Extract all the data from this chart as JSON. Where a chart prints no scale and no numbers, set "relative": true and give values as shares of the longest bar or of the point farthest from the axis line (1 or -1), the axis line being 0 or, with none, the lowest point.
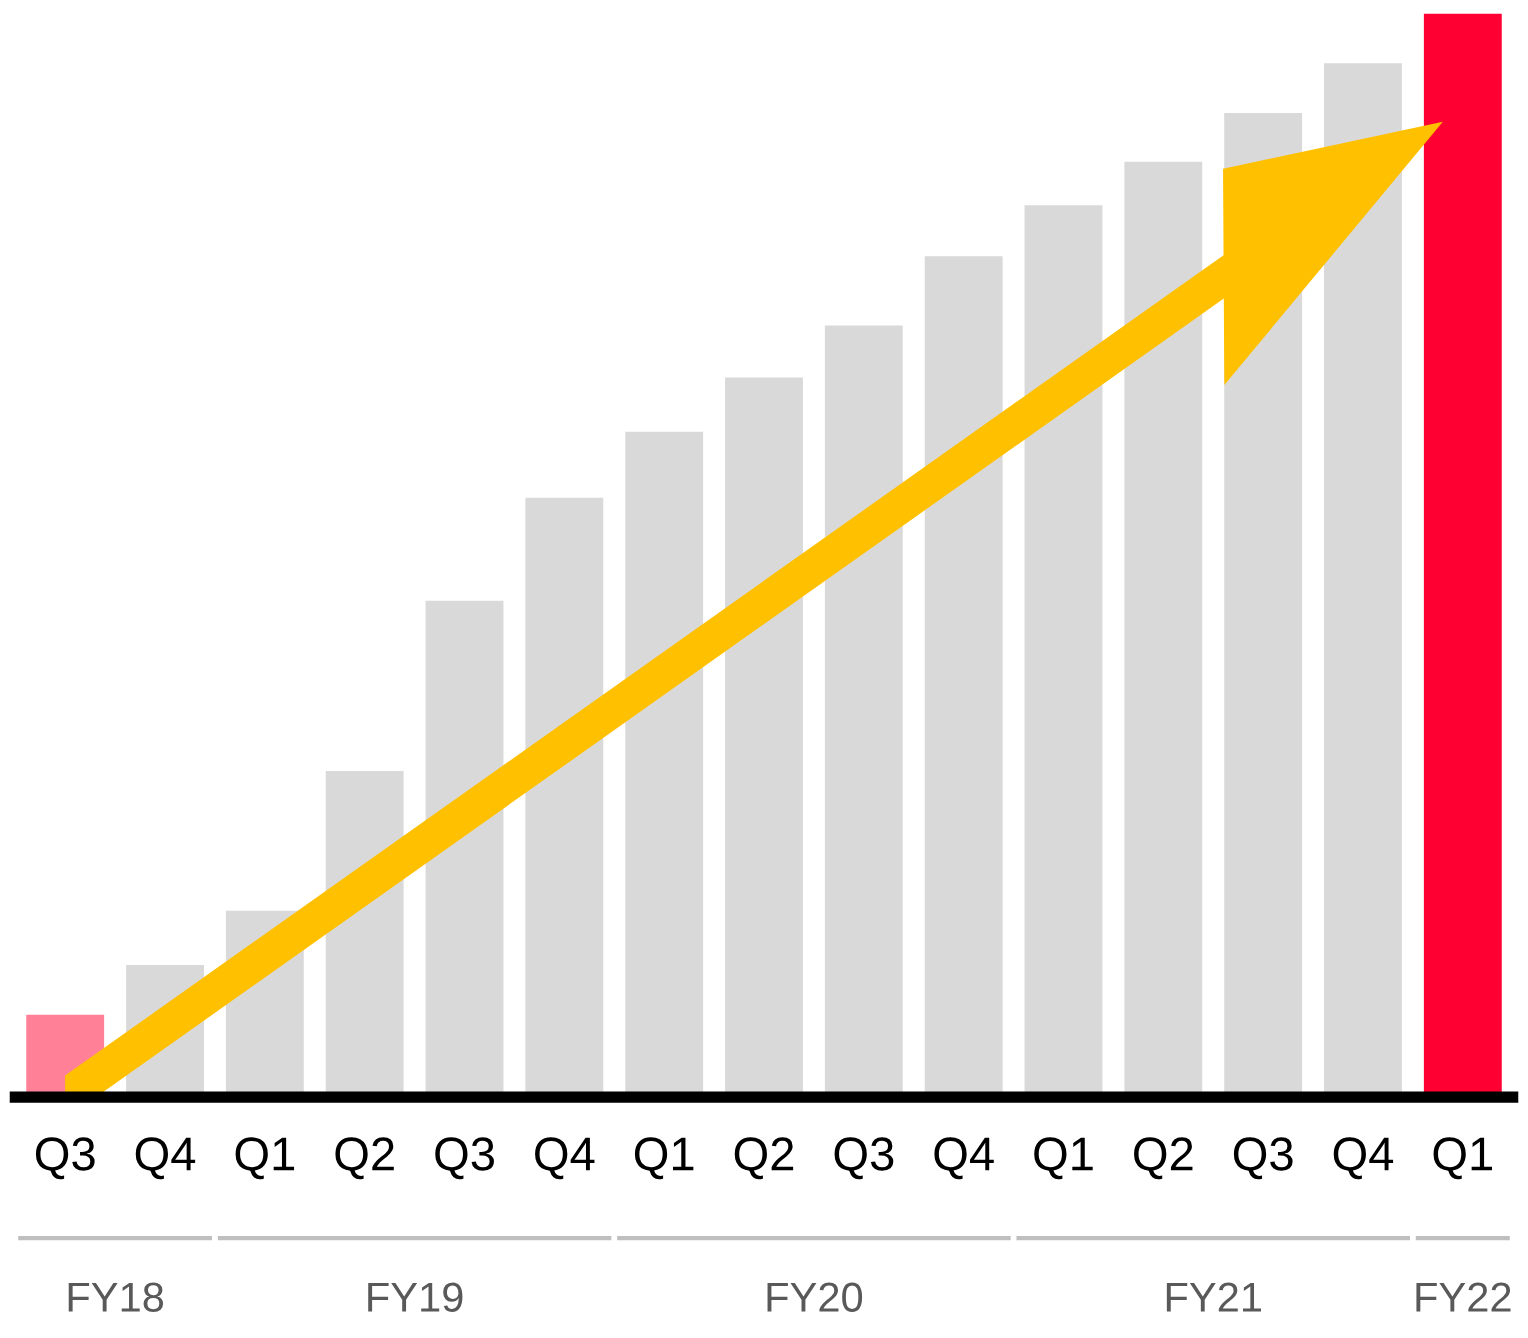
{
  "chart_data": {
    "type": "bar",
    "relative": true,
    "categories": [
      "Q3",
      "Q4",
      "Q1",
      "Q2",
      "Q3",
      "Q4",
      "Q1",
      "Q2",
      "Q3",
      "Q4",
      "Q1",
      "Q2",
      "Q3",
      "Q4",
      "Q1"
    ],
    "values": [
      0.076,
      0.122,
      0.172,
      0.301,
      0.458,
      0.553,
      0.614,
      0.664,
      0.712,
      0.776,
      0.823,
      0.863,
      0.908,
      0.954,
      1
    ],
    "colors": [
      "#ff8097",
      "#d9d9d9",
      "#d9d9d9",
      "#d9d9d9",
      "#d9d9d9",
      "#d9d9d9",
      "#d9d9d9",
      "#d9d9d9",
      "#d9d9d9",
      "#d9d9d9",
      "#d9d9d9",
      "#d9d9d9",
      "#d9d9d9",
      "#d9d9d9",
      "#ff0033"
    ],
    "annotations": [
      "FY18",
      "FY19",
      "FY20",
      "FY21",
      "FY22"
    ],
    "grid": false,
    "legend": false
  }
}
